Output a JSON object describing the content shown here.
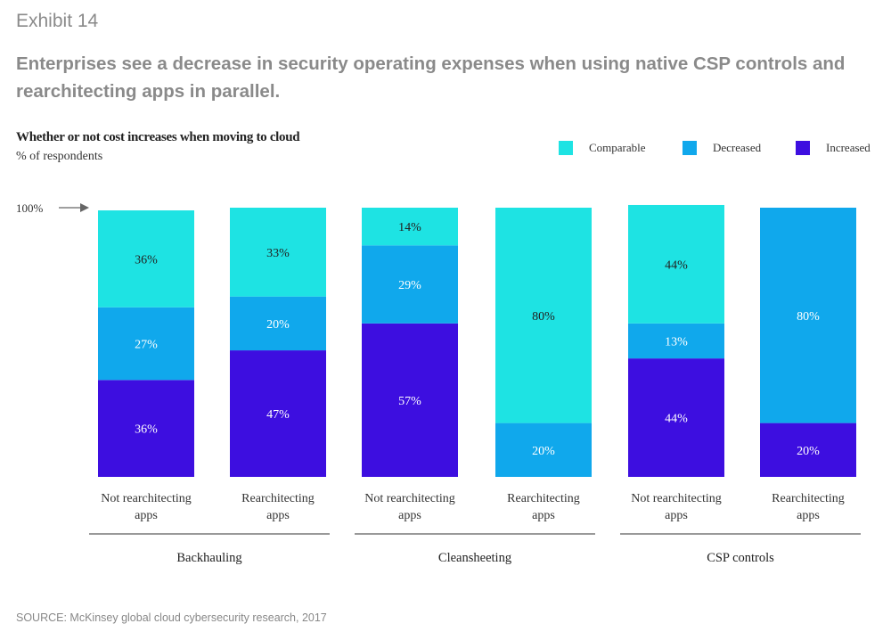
{
  "header": {
    "exhibit": "Exhibit 14",
    "title": "Enterprises see a decrease in security operating expenses when using native CSP controls and rearchitecting apps in parallel."
  },
  "chart_data": {
    "type": "bar",
    "stacked": true,
    "title": "Whether or not cost increases when moving to cloud",
    "ylabel": "% of respondents",
    "ylim": [
      0,
      100
    ],
    "reference_label": "100%",
    "legend": [
      {
        "name": "Comparable",
        "color": "#1ee3e3"
      },
      {
        "name": "Decreased",
        "color": "#10a8ec"
      },
      {
        "name": "Increased",
        "color": "#3d0ee0"
      }
    ],
    "groups": [
      "Backhauling",
      "Cleansheeting",
      "CSP controls"
    ],
    "bars": [
      {
        "label": [
          "Not rearchitecting",
          "apps"
        ],
        "group": 0,
        "increased": 36,
        "decreased": 27,
        "comparable": 36
      },
      {
        "label": [
          "Rearchitecting",
          "apps"
        ],
        "group": 0,
        "increased": 47,
        "decreased": 20,
        "comparable": 33
      },
      {
        "label": [
          "Not rearchitecting",
          "apps"
        ],
        "group": 1,
        "increased": 57,
        "decreased": 29,
        "comparable": 14
      },
      {
        "label": [
          "Rearchitecting",
          "apps"
        ],
        "group": 1,
        "increased": 0,
        "decreased": 20,
        "comparable": 80
      },
      {
        "label": [
          "Not rearchitecting",
          "apps"
        ],
        "group": 2,
        "increased": 44,
        "decreased": 13,
        "comparable": 44
      },
      {
        "label": [
          "Rearchitecting",
          "apps"
        ],
        "group": 2,
        "increased": 20,
        "decreased": 80,
        "comparable": 0
      }
    ]
  },
  "footer": {
    "source": "SOURCE: McKinsey global cloud cybersecurity research, 2017"
  }
}
